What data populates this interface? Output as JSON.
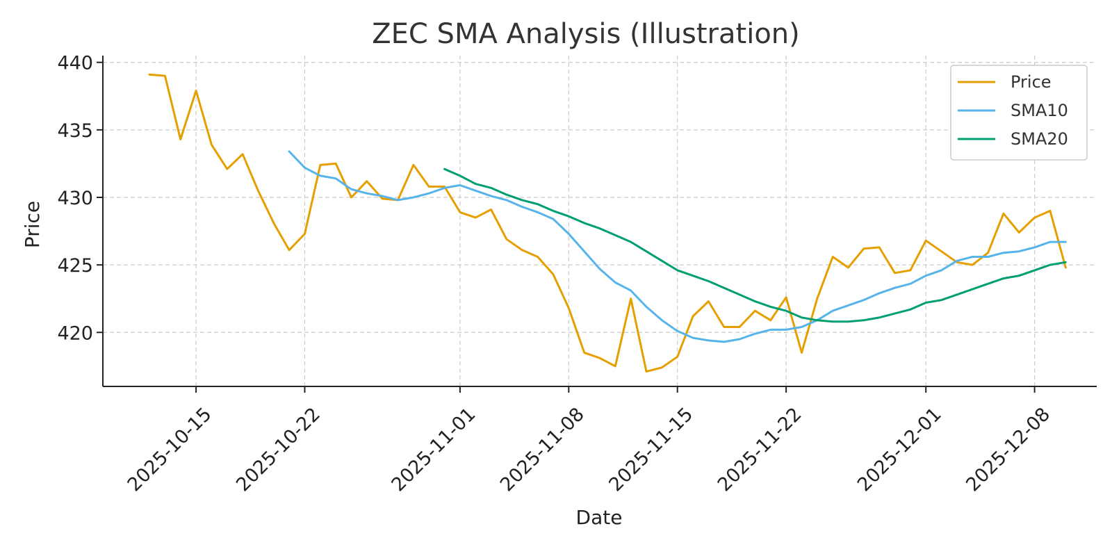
{
  "chart_data": {
    "type": "line",
    "title": "ZEC SMA Analysis (Illustration)",
    "xlabel": "Date",
    "ylabel": "Price",
    "ylim": [
      416,
      440.5
    ],
    "xlim": [
      "2025-10-09",
      "2025-12-12"
    ],
    "yticks": [
      420,
      425,
      430,
      435,
      440
    ],
    "xticks": [
      "2025-10-15",
      "2025-10-22",
      "2025-11-01",
      "2025-11-08",
      "2025-11-15",
      "2025-11-22",
      "2025-12-01",
      "2025-12-08"
    ],
    "grid": true,
    "legend_position": "top-right",
    "x": [
      "2025-10-12",
      "2025-10-13",
      "2025-10-14",
      "2025-10-15",
      "2025-10-16",
      "2025-10-17",
      "2025-10-18",
      "2025-10-19",
      "2025-10-20",
      "2025-10-21",
      "2025-10-22",
      "2025-10-23",
      "2025-10-24",
      "2025-10-25",
      "2025-10-26",
      "2025-10-27",
      "2025-10-28",
      "2025-10-29",
      "2025-10-30",
      "2025-10-31",
      "2025-11-01",
      "2025-11-02",
      "2025-11-03",
      "2025-11-04",
      "2025-11-05",
      "2025-11-06",
      "2025-11-07",
      "2025-11-08",
      "2025-11-09",
      "2025-11-10",
      "2025-11-11",
      "2025-11-12",
      "2025-11-13",
      "2025-11-14",
      "2025-11-15",
      "2025-11-16",
      "2025-11-17",
      "2025-11-18",
      "2025-11-19",
      "2025-11-20",
      "2025-11-21",
      "2025-11-22",
      "2025-11-23",
      "2025-11-24",
      "2025-11-25",
      "2025-11-26",
      "2025-11-27",
      "2025-11-28",
      "2025-11-29",
      "2025-11-30",
      "2025-12-01",
      "2025-12-02",
      "2025-12-03",
      "2025-12-04",
      "2025-12-05",
      "2025-12-06",
      "2025-12-07",
      "2025-12-08",
      "2025-12-09",
      "2025-12-10"
    ],
    "series": [
      {
        "name": "Price",
        "color": "#E69F00",
        "values": [
          439.1,
          439.0,
          434.3,
          437.9,
          433.9,
          432.1,
          433.2,
          430.5,
          428.1,
          426.1,
          427.3,
          432.4,
          432.5,
          430.0,
          431.2,
          429.9,
          429.8,
          432.4,
          430.8,
          430.8,
          428.9,
          428.5,
          429.1,
          426.9,
          426.1,
          425.6,
          424.3,
          421.8,
          418.5,
          418.1,
          417.5,
          422.5,
          417.1,
          417.4,
          418.2,
          421.2,
          422.3,
          420.4,
          420.4,
          421.6,
          420.9,
          422.6,
          418.5,
          422.5,
          425.6,
          424.8,
          426.2,
          426.3,
          424.4,
          424.6,
          426.8,
          426.0,
          425.2,
          425.0,
          425.9,
          428.8,
          427.4,
          428.5,
          429.0,
          424.8
        ]
      },
      {
        "name": "SMA10",
        "color": "#56B4E9",
        "values": [
          null,
          null,
          null,
          null,
          null,
          null,
          null,
          null,
          null,
          433.4,
          432.2,
          431.6,
          431.4,
          430.6,
          430.3,
          430.1,
          429.8,
          430.0,
          430.3,
          430.7,
          430.9,
          430.5,
          430.1,
          429.8,
          429.3,
          428.9,
          428.4,
          427.3,
          426.0,
          424.7,
          423.7,
          423.1,
          421.9,
          420.9,
          420.1,
          419.6,
          419.4,
          419.3,
          419.5,
          419.9,
          420.2,
          420.2,
          420.4,
          420.9,
          421.6,
          422.0,
          422.4,
          422.9,
          423.3,
          423.6,
          424.2,
          424.6,
          425.3,
          425.6,
          425.6,
          425.9,
          426.0,
          426.3,
          426.7,
          426.7
        ]
      },
      {
        "name": "SMA20",
        "color": "#009E73",
        "values": [
          null,
          null,
          null,
          null,
          null,
          null,
          null,
          null,
          null,
          null,
          null,
          null,
          null,
          null,
          null,
          null,
          null,
          null,
          null,
          432.1,
          431.6,
          431.0,
          430.7,
          430.2,
          429.8,
          429.5,
          429.0,
          428.6,
          428.1,
          427.7,
          427.2,
          426.7,
          426.0,
          425.3,
          424.6,
          424.2,
          423.8,
          423.3,
          422.8,
          422.3,
          421.9,
          421.6,
          421.1,
          420.9,
          420.8,
          420.8,
          420.9,
          421.1,
          421.4,
          421.7,
          422.2,
          422.4,
          422.8,
          423.2,
          423.6,
          424.0,
          424.2,
          424.6,
          425.0,
          425.2
        ]
      }
    ]
  }
}
